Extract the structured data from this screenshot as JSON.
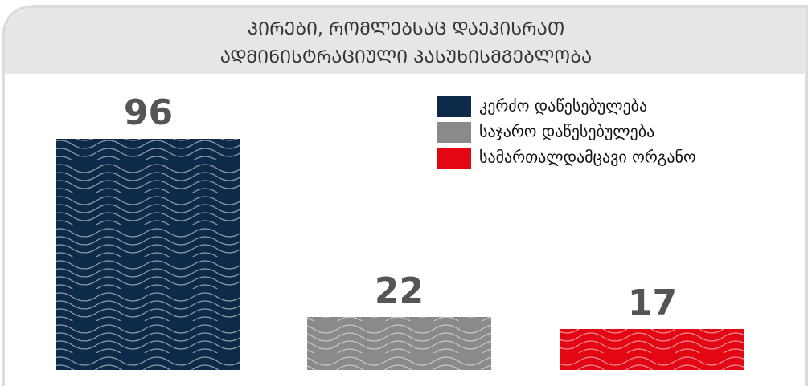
{
  "chart_data": {
    "type": "bar",
    "title": [
      "ᲞᲘᲠᲔᲑᲘ, ᲠᲝᲛᲚᲔᲑᲡᲐᲪ ᲓᲐᲔᲙᲘᲡᲠᲐᲗ",
      "ᲐᲓᲛᲘᲜᲘᲡᲢᲠᲐᲪᲘᲣᲚᲘ ᲞᲐᲡᲣᲮᲘᲡᲛᲒᲔᲑᲚᲝᲑᲐ"
    ],
    "categories": [
      "კერძო დაწესებულება",
      "საჯარო დაწესებულება",
      "სამართალდამცავი ორგანო"
    ],
    "values": [
      96,
      22,
      17
    ],
    "colors": [
      "#0d2a4a",
      "#8a8a8a",
      "#e30613"
    ],
    "legend": "top-right"
  }
}
